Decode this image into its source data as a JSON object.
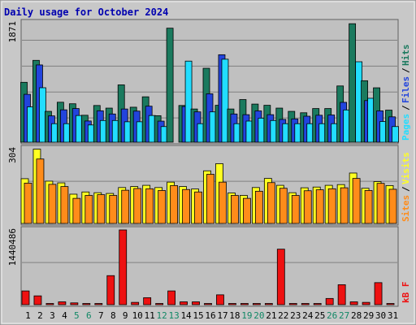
{
  "chart_data": {
    "type": "bar",
    "title": "Daily usage for October 2024",
    "categories": [
      "1",
      "2",
      "3",
      "4",
      "5",
      "6",
      "7",
      "8",
      "9",
      "10",
      "11",
      "12",
      "13",
      "14",
      "15",
      "16",
      "17",
      "18",
      "19",
      "20",
      "21",
      "22",
      "23",
      "24",
      "25",
      "26",
      "27",
      "28",
      "29",
      "30",
      "31"
    ],
    "weekend_days": [
      "5",
      "6",
      "12",
      "13",
      "19",
      "20",
      "26",
      "27"
    ],
    "panels": [
      {
        "id": "top",
        "ymax_label": "1871",
        "ymax": 1871,
        "series": [
          {
            "name": "Hits",
            "color": "#1a7a5e",
            "values": [
              938,
              1282,
              483,
              626,
              602,
              422,
              575,
              534,
              898,
              548,
              711,
              415,
              1786,
              575,
              520,
              1158,
              578,
              520,
              668,
              597,
              578,
              534,
              483,
              461,
              527,
              527,
              881,
              1856,
              963,
              852,
              502
            ]
          },
          {
            "name": "Files",
            "color": "#2244dd",
            "values": [
              750,
              1210,
              412,
              507,
              527,
              332,
              492,
              442,
              520,
              487,
              564,
              330,
              0,
              559,
              475,
              758,
              1370,
              442,
              431,
              490,
              431,
              357,
              365,
              407,
              422,
              426,
              624,
              0,
              652,
              491,
              397
            ]
          },
          {
            "name": "Pages",
            "color": "#22ddff",
            "values": [
              553,
              853,
              290,
              290,
              418,
              270,
              340,
              340,
              320,
              320,
              418,
              245,
              0,
              1270,
              290,
              475,
              1300,
              290,
              331,
              377,
              340,
              290,
              290,
              290,
              290,
              290,
              505,
              1260,
              688,
              324,
              245
            ]
          }
        ],
        "legend_labels": [
          "Pages",
          "Files",
          "Hits"
        ],
        "separator": "/"
      },
      {
        "id": "middle",
        "ymax_label": "304",
        "ymax": 304,
        "series": [
          {
            "name": "Visits",
            "color": "#ffff22",
            "values": [
              182,
              302,
              172,
              165,
              119,
              128,
              125,
              122,
              146,
              150,
              155,
              146,
              168,
              150,
              140,
              214,
              243,
              124,
              114,
              146,
              183,
              155,
              125,
              145,
              148,
              155,
              158,
              205,
              143,
              170,
              154
            ]
          },
          {
            "name": "Sites",
            "color": "#ff8c1a",
            "values": [
              164,
              262,
              159,
              150,
              102,
              114,
              117,
              114,
              135,
              142,
              141,
              134,
              154,
              138,
              128,
              200,
              168,
              114,
              102,
              131,
              166,
              143,
              114,
              133,
              137,
              141,
              145,
              183,
              134,
              163,
              139
            ]
          }
        ],
        "legend_labels": [
          "Sites",
          "Visits"
        ],
        "separator": "/"
      },
      {
        "id": "bottom",
        "ymax_label": "1440486",
        "ymax": 1440486,
        "series": [
          {
            "name": "kB F",
            "color": "#ee1111",
            "values": [
              265000,
              170000,
              20000,
              55000,
              35000,
              20000,
              20000,
              560000,
              1440486,
              45000,
              135000,
              20000,
              265000,
              55000,
              55000,
              20000,
              190000,
              20000,
              20000,
              20000,
              20000,
              1070000,
              20000,
              20000,
              20000,
              120000,
              385000,
              55000,
              45000,
              425000,
              20000
            ]
          }
        ],
        "legend_labels": [
          "kB F"
        ]
      }
    ],
    "grid": true
  }
}
